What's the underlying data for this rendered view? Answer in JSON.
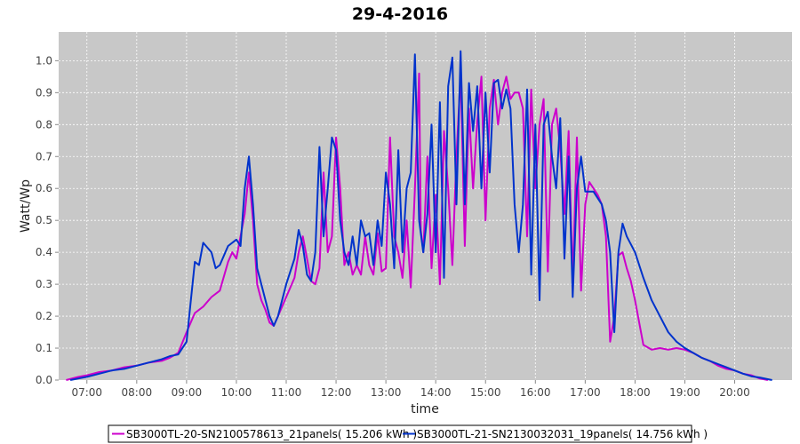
{
  "chart_data": {
    "type": "line",
    "title": "29-4-2016",
    "xlabel": "time",
    "ylabel": "Watt/Wp",
    "x_ticks": [
      "07:00",
      "08:00",
      "09:00",
      "10:00",
      "11:00",
      "12:00",
      "13:00",
      "14:00",
      "15:00",
      "16:00",
      "17:00",
      "18:00",
      "19:00",
      "20:00"
    ],
    "y_ticks": [
      "0.0",
      "0.1",
      "0.2",
      "0.3",
      "0.4",
      "0.5",
      "0.6",
      "0.7",
      "0.8",
      "0.9",
      "1.0"
    ],
    "xlim": [
      "06:26",
      "21:09"
    ],
    "ylim": [
      0,
      1.09
    ],
    "grid": true,
    "legend_position": "bottom",
    "colors": {
      "plot_background": "#c8c8c8",
      "grid": "#ffffff"
    },
    "series": [
      {
        "name": "SB3000TL-20-SN2100578613_21panels( 15.206 kWh )",
        "color": "#cc00cc",
        "points": [
          [
            "06:35",
            0.0
          ],
          [
            "06:50",
            0.01
          ],
          [
            "07:00",
            0.015
          ],
          [
            "07:15",
            0.025
          ],
          [
            "07:30",
            0.03
          ],
          [
            "07:45",
            0.04
          ],
          [
            "08:00",
            0.045
          ],
          [
            "08:15",
            0.055
          ],
          [
            "08:30",
            0.06
          ],
          [
            "08:40",
            0.07
          ],
          [
            "08:50",
            0.085
          ],
          [
            "09:00",
            0.15
          ],
          [
            "09:10",
            0.21
          ],
          [
            "09:20",
            0.23
          ],
          [
            "09:30",
            0.26
          ],
          [
            "09:40",
            0.28
          ],
          [
            "09:50",
            0.37
          ],
          [
            "09:55",
            0.4
          ],
          [
            "10:00",
            0.38
          ],
          [
            "10:10",
            0.52
          ],
          [
            "10:15",
            0.65
          ],
          [
            "10:20",
            0.5
          ],
          [
            "10:25",
            0.3
          ],
          [
            "10:30",
            0.25
          ],
          [
            "10:35",
            0.22
          ],
          [
            "10:40",
            0.18
          ],
          [
            "10:45",
            0.17
          ],
          [
            "10:50",
            0.2
          ],
          [
            "11:00",
            0.26
          ],
          [
            "11:10",
            0.32
          ],
          [
            "11:15",
            0.4
          ],
          [
            "11:20",
            0.45
          ],
          [
            "11:25",
            0.38
          ],
          [
            "11:30",
            0.31
          ],
          [
            "11:35",
            0.3
          ],
          [
            "11:40",
            0.35
          ],
          [
            "11:45",
            0.65
          ],
          [
            "11:50",
            0.4
          ],
          [
            "11:55",
            0.45
          ],
          [
            "12:00",
            0.76
          ],
          [
            "12:05",
            0.6
          ],
          [
            "12:10",
            0.36
          ],
          [
            "12:15",
            0.4
          ],
          [
            "12:20",
            0.33
          ],
          [
            "12:25",
            0.36
          ],
          [
            "12:30",
            0.33
          ],
          [
            "12:35",
            0.45
          ],
          [
            "12:40",
            0.36
          ],
          [
            "12:45",
            0.33
          ],
          [
            "12:50",
            0.46
          ],
          [
            "12:55",
            0.34
          ],
          [
            "13:00",
            0.35
          ],
          [
            "13:05",
            0.76
          ],
          [
            "13:10",
            0.45
          ],
          [
            "13:15",
            0.4
          ],
          [
            "13:20",
            0.32
          ],
          [
            "13:25",
            0.5
          ],
          [
            "13:30",
            0.29
          ],
          [
            "13:35",
            0.6
          ],
          [
            "13:40",
            0.96
          ],
          [
            "13:42",
            0.47
          ],
          [
            "13:45",
            0.4
          ],
          [
            "13:50",
            0.7
          ],
          [
            "13:55",
            0.35
          ],
          [
            "14:00",
            0.58
          ],
          [
            "14:05",
            0.3
          ],
          [
            "14:10",
            0.78
          ],
          [
            "14:15",
            0.6
          ],
          [
            "14:20",
            0.36
          ],
          [
            "14:25",
            0.7
          ],
          [
            "14:30",
            0.96
          ],
          [
            "14:35",
            0.42
          ],
          [
            "14:40",
            0.85
          ],
          [
            "14:45",
            0.6
          ],
          [
            "14:50",
            0.81
          ],
          [
            "14:55",
            0.95
          ],
          [
            "15:00",
            0.5
          ],
          [
            "15:05",
            0.85
          ],
          [
            "15:10",
            0.94
          ],
          [
            "15:15",
            0.8
          ],
          [
            "15:20",
            0.9
          ],
          [
            "15:25",
            0.95
          ],
          [
            "15:30",
            0.88
          ],
          [
            "15:35",
            0.9
          ],
          [
            "15:40",
            0.9
          ],
          [
            "15:45",
            0.85
          ],
          [
            "15:50",
            0.45
          ],
          [
            "15:55",
            0.91
          ],
          [
            "16:00",
            0.6
          ],
          [
            "16:05",
            0.8
          ],
          [
            "16:10",
            0.88
          ],
          [
            "16:15",
            0.34
          ],
          [
            "16:20",
            0.8
          ],
          [
            "16:25",
            0.85
          ],
          [
            "16:30",
            0.72
          ],
          [
            "16:35",
            0.52
          ],
          [
            "16:40",
            0.78
          ],
          [
            "16:45",
            0.31
          ],
          [
            "16:50",
            0.76
          ],
          [
            "16:55",
            0.28
          ],
          [
            "17:00",
            0.55
          ],
          [
            "17:05",
            0.62
          ],
          [
            "17:10",
            0.6
          ],
          [
            "17:15",
            0.58
          ],
          [
            "17:20",
            0.55
          ],
          [
            "17:25",
            0.45
          ],
          [
            "17:30",
            0.12
          ],
          [
            "17:35",
            0.2
          ],
          [
            "17:40",
            0.39
          ],
          [
            "17:45",
            0.4
          ],
          [
            "17:50",
            0.35
          ],
          [
            "17:55",
            0.31
          ],
          [
            "18:00",
            0.25
          ],
          [
            "18:10",
            0.11
          ],
          [
            "18:20",
            0.095
          ],
          [
            "18:30",
            0.1
          ],
          [
            "18:40",
            0.095
          ],
          [
            "18:50",
            0.1
          ],
          [
            "19:00",
            0.095
          ],
          [
            "19:10",
            0.085
          ],
          [
            "19:20",
            0.07
          ],
          [
            "19:30",
            0.06
          ],
          [
            "19:40",
            0.045
          ],
          [
            "19:50",
            0.035
          ],
          [
            "20:00",
            0.03
          ],
          [
            "20:10",
            0.02
          ],
          [
            "20:20",
            0.015
          ],
          [
            "20:30",
            0.005
          ],
          [
            "20:40",
            0.0
          ]
        ]
      },
      {
        "name": "SB3000TL-21-SN2130032031_19panels( 14.756 kWh )",
        "color": "#0033cc",
        "points": [
          [
            "06:40",
            0.0
          ],
          [
            "06:50",
            0.005
          ],
          [
            "07:00",
            0.01
          ],
          [
            "07:15",
            0.02
          ],
          [
            "07:30",
            0.03
          ],
          [
            "07:45",
            0.035
          ],
          [
            "08:00",
            0.045
          ],
          [
            "08:15",
            0.055
          ],
          [
            "08:30",
            0.065
          ],
          [
            "08:40",
            0.075
          ],
          [
            "08:50",
            0.08
          ],
          [
            "09:00",
            0.12
          ],
          [
            "09:10",
            0.37
          ],
          [
            "09:15",
            0.36
          ],
          [
            "09:20",
            0.43
          ],
          [
            "09:30",
            0.4
          ],
          [
            "09:35",
            0.35
          ],
          [
            "09:40",
            0.36
          ],
          [
            "09:50",
            0.42
          ],
          [
            "10:00",
            0.44
          ],
          [
            "10:05",
            0.42
          ],
          [
            "10:10",
            0.6
          ],
          [
            "10:15",
            0.7
          ],
          [
            "10:20",
            0.55
          ],
          [
            "10:25",
            0.35
          ],
          [
            "10:30",
            0.3
          ],
          [
            "10:40",
            0.2
          ],
          [
            "10:45",
            0.17
          ],
          [
            "10:50",
            0.2
          ],
          [
            "11:00",
            0.3
          ],
          [
            "11:10",
            0.38
          ],
          [
            "11:15",
            0.47
          ],
          [
            "11:20",
            0.42
          ],
          [
            "11:25",
            0.33
          ],
          [
            "11:30",
            0.31
          ],
          [
            "11:35",
            0.4
          ],
          [
            "11:40",
            0.73
          ],
          [
            "11:45",
            0.45
          ],
          [
            "11:50",
            0.6
          ],
          [
            "11:55",
            0.76
          ],
          [
            "12:00",
            0.72
          ],
          [
            "12:05",
            0.5
          ],
          [
            "12:10",
            0.4
          ],
          [
            "12:15",
            0.36
          ],
          [
            "12:20",
            0.45
          ],
          [
            "12:25",
            0.36
          ],
          [
            "12:30",
            0.5
          ],
          [
            "12:35",
            0.45
          ],
          [
            "12:40",
            0.46
          ],
          [
            "12:45",
            0.36
          ],
          [
            "12:50",
            0.5
          ],
          [
            "12:55",
            0.42
          ],
          [
            "13:00",
            0.65
          ],
          [
            "13:05",
            0.55
          ],
          [
            "13:10",
            0.35
          ],
          [
            "13:15",
            0.72
          ],
          [
            "13:20",
            0.4
          ],
          [
            "13:25",
            0.6
          ],
          [
            "13:30",
            0.65
          ],
          [
            "13:35",
            1.02
          ],
          [
            "13:40",
            0.5
          ],
          [
            "13:45",
            0.4
          ],
          [
            "13:50",
            0.52
          ],
          [
            "13:55",
            0.8
          ],
          [
            "14:00",
            0.4
          ],
          [
            "14:05",
            0.87
          ],
          [
            "14:10",
            0.32
          ],
          [
            "14:15",
            0.92
          ],
          [
            "14:20",
            1.01
          ],
          [
            "14:25",
            0.55
          ],
          [
            "14:30",
            1.03
          ],
          [
            "14:35",
            0.55
          ],
          [
            "14:40",
            0.93
          ],
          [
            "14:45",
            0.78
          ],
          [
            "14:50",
            0.92
          ],
          [
            "14:55",
            0.6
          ],
          [
            "15:00",
            0.9
          ],
          [
            "15:05",
            0.65
          ],
          [
            "15:10",
            0.93
          ],
          [
            "15:15",
            0.94
          ],
          [
            "15:20",
            0.85
          ],
          [
            "15:25",
            0.91
          ],
          [
            "15:30",
            0.85
          ],
          [
            "15:35",
            0.55
          ],
          [
            "15:40",
            0.4
          ],
          [
            "15:45",
            0.55
          ],
          [
            "15:50",
            0.91
          ],
          [
            "15:55",
            0.33
          ],
          [
            "16:00",
            0.8
          ],
          [
            "16:05",
            0.25
          ],
          [
            "16:10",
            0.8
          ],
          [
            "16:15",
            0.84
          ],
          [
            "16:20",
            0.7
          ],
          [
            "16:25",
            0.6
          ],
          [
            "16:30",
            0.82
          ],
          [
            "16:35",
            0.38
          ],
          [
            "16:40",
            0.7
          ],
          [
            "16:45",
            0.26
          ],
          [
            "16:50",
            0.6
          ],
          [
            "16:55",
            0.7
          ],
          [
            "17:00",
            0.59
          ],
          [
            "17:10",
            0.59
          ],
          [
            "17:20",
            0.55
          ],
          [
            "17:25",
            0.5
          ],
          [
            "17:30",
            0.4
          ],
          [
            "17:35",
            0.15
          ],
          [
            "17:40",
            0.4
          ],
          [
            "17:45",
            0.49
          ],
          [
            "17:50",
            0.45
          ],
          [
            "18:00",
            0.4
          ],
          [
            "18:10",
            0.32
          ],
          [
            "18:20",
            0.25
          ],
          [
            "18:30",
            0.2
          ],
          [
            "18:40",
            0.15
          ],
          [
            "18:50",
            0.12
          ],
          [
            "19:00",
            0.1
          ],
          [
            "19:10",
            0.085
          ],
          [
            "19:20",
            0.07
          ],
          [
            "19:30",
            0.06
          ],
          [
            "19:40",
            0.05
          ],
          [
            "19:50",
            0.04
          ],
          [
            "20:00",
            0.03
          ],
          [
            "20:10",
            0.02
          ],
          [
            "20:20",
            0.012
          ],
          [
            "20:30",
            0.008
          ],
          [
            "20:45",
            0.0
          ]
        ]
      }
    ]
  }
}
